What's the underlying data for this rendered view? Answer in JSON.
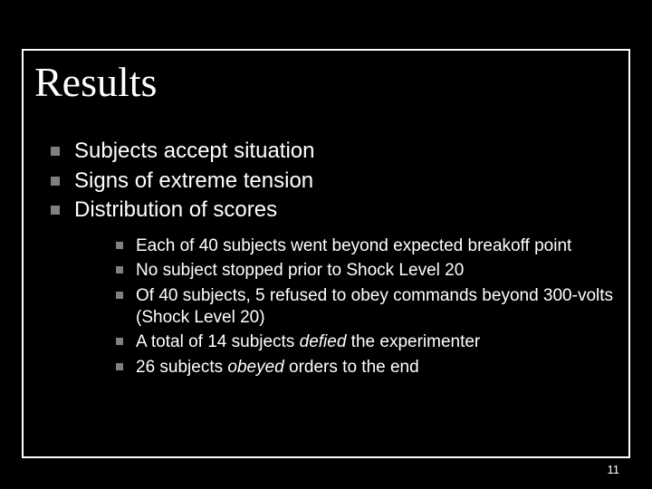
{
  "slide": {
    "title": "Results",
    "page_number": "11",
    "colors": {
      "background": "#000000",
      "text": "#ffffff",
      "bullet": "#808080",
      "border": "#ffffff"
    },
    "typography": {
      "title_font": "Times New Roman",
      "title_size_pt": 46,
      "body_font": "Arial",
      "lvl1_size_pt": 24,
      "lvl2_size_pt": 19
    },
    "bullets_lvl1": [
      "Subjects accept situation",
      "Signs of extreme tension",
      "Distribution of scores"
    ],
    "bullets_lvl2": [
      {
        "pre": "Each of 40 subjects went beyond expected breakoff point",
        "em": "",
        "post": ""
      },
      {
        "pre": "No subject stopped prior to Shock Level 20",
        "em": "",
        "post": ""
      },
      {
        "pre": "Of 40 subjects, 5 refused to obey commands beyond 300-volts (Shock Level 20)",
        "em": "",
        "post": ""
      },
      {
        "pre": "A total of 14 subjects ",
        "em": "defied",
        "post": " the experimenter"
      },
      {
        "pre": "26 subjects ",
        "em": "obeyed",
        "post": " orders to the end"
      }
    ]
  }
}
